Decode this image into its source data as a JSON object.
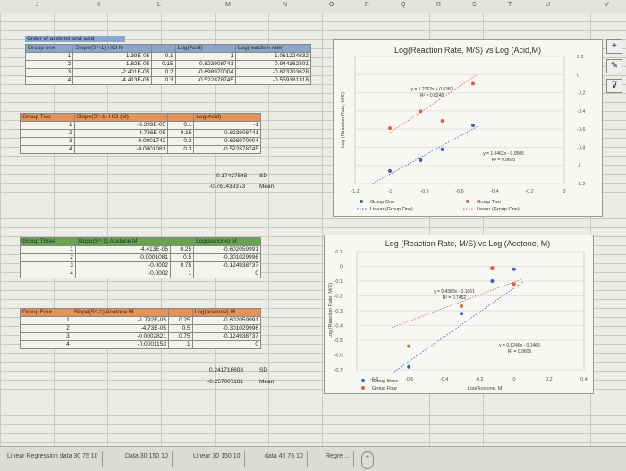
{
  "columns": [
    "J",
    "K",
    "L",
    "M",
    "N",
    "O",
    "P",
    "Q",
    "R",
    "S",
    "T",
    "U",
    "V"
  ],
  "group_one": {
    "title": "Order of acetone and acid",
    "headers": [
      "Group one",
      "Slope(S^-1) HCl M",
      "",
      "Log(Acid)",
      "Log(reaction rate)"
    ],
    "rows": [
      [
        "1",
        "-1.39E-05",
        "0.1",
        "-1",
        "-1.061224832"
      ],
      [
        "2",
        "-1.82E-05",
        "0.15",
        "-0.823908741",
        "-0.944162301"
      ],
      [
        "3",
        "-2.401E-05",
        "0.2",
        "-0.698970004",
        "-0.823703628"
      ],
      [
        "4",
        "-4.413E-05",
        "0.3",
        "-0.522878745",
        "-0.559381318"
      ]
    ]
  },
  "group_two": {
    "headers": [
      "Group Two",
      "Slope(S^-1) HCl (M)",
      "",
      "Log(Acid)"
    ],
    "rows": [
      [
        "1",
        "-3.399E-05",
        "0.1",
        "-1"
      ],
      [
        "2",
        "-4.736E-05",
        "0.15",
        "-0.823908741"
      ],
      [
        "3",
        "-0.0001742",
        "0.2",
        "-0.698970004"
      ],
      [
        "4",
        "-0.0001081",
        "0.3",
        "-0.522878745"
      ]
    ],
    "sd_value": "0.17437545",
    "sd_label": "SD",
    "mean_value": "-0.761439373",
    "mean_label": "Mean"
  },
  "group_three": {
    "headers": [
      "Group Three",
      "Slope(S^-1) Acetone M",
      "",
      "Log(acetone) M"
    ],
    "rows": [
      [
        "1",
        "-4.413E-05",
        "0.25",
        "-0.602059991"
      ],
      [
        "2",
        "-0.0001081",
        "0.5",
        "-0.301029996"
      ],
      [
        "3",
        "-0.0002",
        "0.75",
        "-0.124938737"
      ],
      [
        "4",
        "-0.0002",
        "1",
        "0"
      ]
    ]
  },
  "group_four": {
    "headers": [
      "Group Four",
      "Slope(S^-1) Acetone M",
      "",
      "Log(acetone) M"
    ],
    "rows": [
      [
        "1",
        "-1.792E-05",
        "0.25",
        "-0.602059991"
      ],
      [
        "2",
        "-4.73E-05",
        "0.5",
        "-0.301029996"
      ],
      [
        "3",
        "-0.0002821",
        "0.75",
        "-0.124938737"
      ],
      [
        "4",
        "-0.0001153",
        "1",
        "0"
      ]
    ],
    "sd_value": "0.241716608",
    "sd_label": "SD",
    "mean_value": "-0.257007181",
    "mean_label": "Mean"
  },
  "chart_data": [
    {
      "type": "scatter",
      "title": "Log(Reaction Rate, M/S) vs Log (Acid,M)",
      "ylabel": "Log (Reaction Rate, M/S)",
      "xlabel": "",
      "xlim": [
        -1.2,
        0
      ],
      "ylim": [
        -1.2,
        0.2
      ],
      "xticks": [
        "-1.2",
        "-1",
        "-0.8",
        "-0.6",
        "-0.4",
        "-0.2",
        "0"
      ],
      "yticks": [
        "0.2",
        "0",
        "-0.2",
        "-0.4",
        "-0.6",
        "-0.8",
        "-1",
        "-1.2"
      ],
      "series": [
        {
          "name": "Group One",
          "color": "#3a5fb5",
          "x": [
            -1,
            -0.824,
            -0.699,
            -0.523
          ],
          "y": [
            -1.061,
            -0.944,
            -0.824,
            -0.559
          ]
        },
        {
          "name": "Group Two",
          "color": "#e0623a",
          "x": [
            -1,
            -0.824,
            -0.699,
            -0.523
          ],
          "y": [
            -0.59,
            -0.405,
            -0.51,
            -0.1
          ]
        }
      ],
      "trendlines": [
        {
          "name": "Linear (Group One)",
          "color": "#3a5fb5",
          "slope": 1.0462,
          "intercept": -0.0505,
          "equation": "y = 1.0462x - 0.0505",
          "r2": "R² = 0.9605"
        },
        {
          "name": "Linear (Group One)",
          "color": "#e0623a",
          "slope": 1.2762,
          "intercept": 0.6381,
          "equation": "y = 1.2762x + 0.6381",
          "r2": "R² = 0.6248"
        }
      ],
      "legend": "bottom"
    },
    {
      "type": "scatter",
      "title": "Log (Reaction Rate, M/S) vs Log (Acetone, M)",
      "ylabel": "Log (Reaction Rate, M/S)",
      "xlabel": "Log(Acetone, M)",
      "xlim": [
        -0.9,
        0.4
      ],
      "ylim": [
        -0.7,
        0.1
      ],
      "xticks": [
        "-0.8",
        "-0.6",
        "-0.4",
        "-0.2",
        "0",
        "0.2",
        "0.4"
      ],
      "yticks": [
        "0.1",
        "0",
        "-0.1",
        "-0.2",
        "-0.3",
        "-0.4",
        "-0.5",
        "-0.6",
        "-0.7"
      ],
      "series": [
        {
          "name": "Group three",
          "color": "#3a5fb5",
          "x": [
            -0.602,
            -0.301,
            -0.125,
            0
          ],
          "y": [
            -0.68,
            -0.32,
            -0.1,
            -0.02
          ]
        },
        {
          "name": "Group Four",
          "color": "#e0623a",
          "x": [
            -0.602,
            -0.301,
            -0.125,
            0
          ],
          "y": [
            -0.54,
            -0.27,
            -0.01,
            -0.12
          ]
        }
      ],
      "trendlines": [
        {
          "name": "",
          "color": "#e0623a",
          "slope": 0.4388,
          "intercept": -0.1061,
          "equation": "y = 0.4388x - 0.1061",
          "r2": "R² = 0.7452"
        },
        {
          "name": "",
          "color": "#3a5fb5",
          "slope": 0.8246,
          "intercept": -0.1466,
          "equation": "y = 0.8246x - 0.1466",
          "r2": "R² = 0.9605"
        }
      ],
      "legend": "bottom-left"
    }
  ],
  "tabs": [
    "Linear Regression data 30 75 10",
    "Data 30 150 10",
    "Linear 30 150 10",
    "data 45 75 10",
    "Regre ...",
    "+"
  ]
}
